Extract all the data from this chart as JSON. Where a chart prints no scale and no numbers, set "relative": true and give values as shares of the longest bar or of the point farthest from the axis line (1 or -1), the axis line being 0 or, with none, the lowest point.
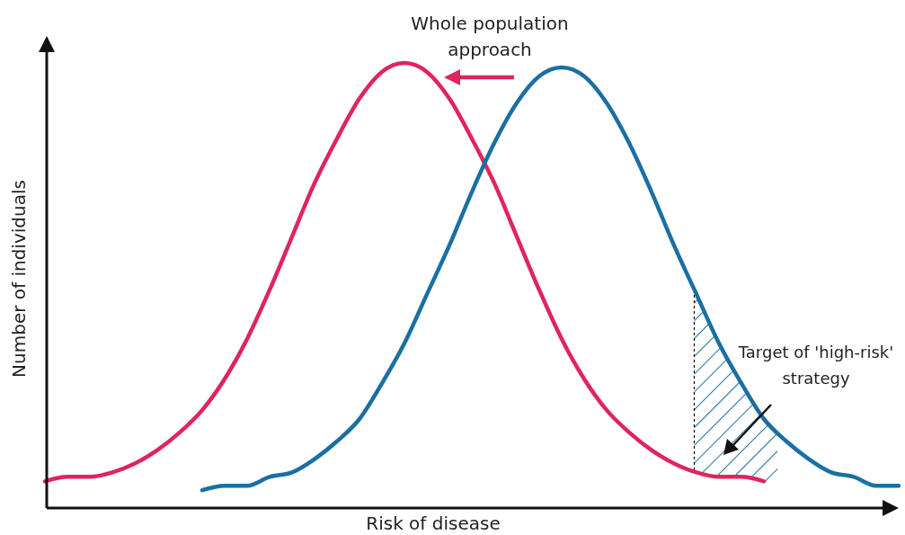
{
  "chart_data": {
    "type": "line",
    "relative": true,
    "xlabel": "Risk of disease",
    "ylabel": "Number of individuals",
    "categories": [
      null,
      null,
      null,
      null,
      null,
      null,
      null,
      null,
      null,
      null,
      null,
      null,
      null,
      null,
      null,
      null,
      null,
      null,
      null,
      null,
      null,
      null,
      null,
      null,
      null,
      null,
      null,
      null,
      null,
      null,
      null,
      null,
      null,
      null,
      null,
      null,
      null,
      null,
      null
    ],
    "series": [
      {
        "color": "#e0245e",
        "values": [
          0.06,
          0.07,
          0.07,
          0.08,
          0.1,
          0.13,
          0.17,
          0.22,
          0.29,
          0.38,
          0.49,
          0.61,
          0.73,
          0.83,
          0.92,
          0.98,
          1,
          0.98,
          0.92,
          0.83,
          0.73,
          0.61,
          0.49,
          0.38,
          0.29,
          0.22,
          0.17,
          0.13,
          0.1,
          0.08,
          0.07,
          0.07,
          0.06,
          null,
          null,
          null,
          null,
          null,
          null
        ]
      },
      {
        "color": "#1a6fa3",
        "values": [
          null,
          null,
          null,
          null,
          null,
          null,
          null,
          0.04,
          0.05,
          0.05,
          0.07,
          0.08,
          0.11,
          0.15,
          0.2,
          0.28,
          0.37,
          0.48,
          0.59,
          0.71,
          0.82,
          0.91,
          0.97,
          0.99,
          0.97,
          0.91,
          0.82,
          0.71,
          0.59,
          0.48,
          0.37,
          0.28,
          0.2,
          0.15,
          0.11,
          0.08,
          0.07,
          0.05,
          0.05
        ]
      }
    ],
    "annotations": [
      "Whole population approach",
      "Target of 'high-risk' strategy"
    ],
    "marker": "none",
    "line_style": "solid"
  }
}
